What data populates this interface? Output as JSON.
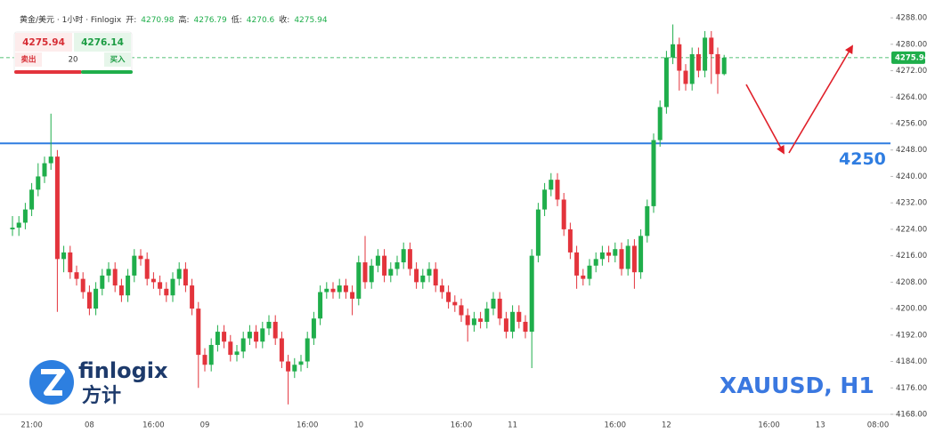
{
  "chart_data": {
    "type": "candlestick",
    "title": "黄金/美元 · 1小时 · Finlogix",
    "ohlc_names": [
      "开:",
      "高:",
      "低:",
      "收:"
    ],
    "up_color": "#1fae4b",
    "down_color": "#e3343c",
    "level": 4250,
    "level_color": "#2f7de1",
    "symbol": "XAUUSD, H1",
    "logo": [
      "finlogix",
      "方计"
    ],
    "trade_panel": {
      "sell_label": "卖出",
      "buy_label": "买入",
      "quantity": 20,
      "buy_price": 4276.14
    },
    "ylim": [
      4168,
      4293.4
    ],
    "yticks": [
      {
        "value": 4168,
        "label": "4168.00"
      },
      {
        "value": 4176,
        "label": "4176.00"
      },
      {
        "value": 4184,
        "label": "4184.00"
      },
      {
        "value": 4192,
        "label": "4192.00"
      },
      {
        "value": 4200,
        "label": "4200.00"
      },
      {
        "value": 4208,
        "label": "4208.00"
      },
      {
        "value": 4216,
        "label": "4216.00"
      },
      {
        "value": 4224,
        "label": "4224.00"
      },
      {
        "value": 4232,
        "label": "4232.00"
      },
      {
        "value": 4240,
        "label": "4240.00"
      },
      {
        "value": 4248,
        "label": "4248.00"
      },
      {
        "value": 4256,
        "label": "4256.00"
      },
      {
        "value": 4264,
        "label": "4264.00"
      },
      {
        "value": 4272,
        "label": "4272.00"
      },
      {
        "value": 4280,
        "label": "4280.00"
      },
      {
        "value": 4288,
        "label": "4288.00"
      }
    ],
    "categories": [
      null,
      null,
      null,
      "21:00",
      null,
      null,
      null,
      null,
      null,
      null,
      null,
      null,
      "08",
      null,
      null,
      null,
      null,
      null,
      null,
      null,
      null,
      null,
      "16:00",
      null,
      null,
      null,
      null,
      null,
      null,
      null,
      "09",
      null,
      null,
      null,
      null,
      null,
      null,
      null,
      null,
      null,
      null,
      null,
      null,
      null,
      null,
      null,
      "16:00",
      null,
      null,
      null,
      null,
      null,
      null,
      null,
      "10",
      null,
      null,
      null,
      null,
      null,
      null,
      null,
      null,
      null,
      null,
      null,
      null,
      null,
      null,
      null,
      "16:00",
      null,
      null,
      null,
      null,
      null,
      null,
      null,
      "11",
      null,
      null,
      null,
      null,
      null,
      null,
      null,
      null,
      null,
      null,
      null,
      null,
      null,
      null,
      null,
      "16:00",
      null,
      null,
      null,
      null,
      null,
      null,
      null,
      "12",
      null,
      null,
      null,
      null,
      null,
      null,
      null,
      null,
      null,
      null,
      null,
      null,
      null,
      null,
      null,
      "16:00",
      null,
      null,
      null,
      null,
      null,
      null,
      null,
      "13",
      null,
      null,
      null,
      null,
      null,
      null,
      null,
      null,
      "08:00"
    ],
    "open": [
      4224,
      4224.5,
      4226,
      4230,
      4236,
      4240,
      4244,
      4246,
      4215,
      4217,
      4211,
      4209,
      4205,
      4200,
      4206,
      4210,
      4212,
      4207,
      4204,
      4210,
      4216,
      4215,
      4209,
      4208,
      4206,
      4204,
      4209,
      4212,
      4207,
      4200,
      4186,
      4183,
      4189,
      4193,
      4190,
      4186,
      4187,
      4191,
      4193,
      4190,
      4194,
      4196,
      4191,
      4184,
      4181,
      4183,
      4184,
      4191,
      4197,
      4205,
      4206,
      4205,
      4207,
      4205,
      4203,
      4214,
      4208,
      4213,
      4216,
      4210,
      4212,
      4214,
      4218,
      4212,
      4208,
      4210,
      4212,
      4207,
      4205,
      4202,
      4201,
      4198,
      4195,
      4197,
      4196,
      4200,
      4203,
      4197,
      4193,
      4199,
      4196,
      4193,
      4216,
      4230,
      4236,
      4239,
      4233,
      4224,
      4217,
      4210,
      4209,
      4213,
      4215,
      4217,
      4216,
      4218,
      4212,
      4219,
      4211,
      4222,
      4231,
      4251,
      4261,
      4276,
      4280,
      4272,
      4268,
      4277,
      4272,
      4282,
      4277,
      4270.98,
      null,
      null,
      null,
      null,
      null,
      null,
      null,
      null,
      null,
      null,
      null,
      null,
      null,
      null,
      null,
      null,
      null,
      null,
      null,
      null,
      null,
      null,
      null,
      null
    ],
    "high": [
      4228,
      4228,
      4232,
      4238,
      4244,
      4246,
      4259,
      4248,
      4219,
      4219,
      4213,
      4211,
      4207,
      4208,
      4212,
      4214,
      4214,
      4209,
      4212,
      4218,
      4218,
      4217,
      4211,
      4210,
      4208,
      4211,
      4214,
      4214,
      4209,
      4202,
      4188,
      4191,
      4195,
      4195,
      4192,
      4189,
      4193,
      4195,
      4195,
      4196,
      4198,
      4198,
      4193,
      4186,
      4185,
      4186,
      4193,
      4199,
      4207,
      4208,
      4208,
      4209,
      4209,
      4207,
      4216,
      4222,
      4215,
      4218,
      4218,
      4214,
      4216,
      4220,
      4220,
      4214,
      4212,
      4214,
      4214,
      4209,
      4207,
      4204,
      4203,
      4200,
      4199,
      4199,
      4202,
      4205,
      4205,
      4199,
      4201,
      4201,
      4198,
      4218,
      4232,
      4238,
      4241,
      4241,
      4235,
      4226,
      4219,
      4212,
      4215,
      4217,
      4219,
      4219,
      4220,
      4220,
      4221,
      4221,
      4224,
      4233,
      4253,
      4263,
      4278,
      4286,
      4282,
      4274,
      4279,
      4279,
      4284,
      4284,
      4279,
      4276.79,
      null,
      null,
      null,
      null,
      null,
      null,
      null,
      null,
      null,
      null,
      null,
      null,
      null,
      null,
      null,
      null,
      null,
      null,
      null,
      null,
      null,
      null,
      null,
      null
    ],
    "low": [
      4222,
      4222,
      4224,
      4228,
      4234,
      4238,
      4242,
      4199,
      4211,
      4209,
      4207,
      4203,
      4198,
      4198,
      4204,
      4208,
      4205,
      4202,
      4202,
      4208,
      4213,
      4207,
      4206,
      4204,
      4202,
      4202,
      4207,
      4205,
      4198,
      4176,
      4181,
      4181,
      4187,
      4188,
      4184,
      4184,
      4185,
      4189,
      4188,
      4188,
      4192,
      4189,
      4182,
      4171,
      4179,
      4181,
      4182,
      4189,
      4195,
      4203,
      4203,
      4203,
      4203,
      4198,
      4201,
      4206,
      4206,
      4211,
      4208,
      4208,
      4210,
      4212,
      4210,
      4206,
      4206,
      4208,
      4205,
      4203,
      4200,
      4199,
      4196,
      4190,
      4193,
      4194,
      4194,
      4198,
      4195,
      4191,
      4191,
      4194,
      4191,
      4182,
      4214,
      4228,
      4234,
      4231,
      4222,
      4215,
      4206,
      4207,
      4207,
      4211,
      4213,
      4214,
      4214,
      4210,
      4210,
      4206,
      4209,
      4220,
      4229,
      4249,
      4259,
      4274,
      4266,
      4266,
      4266,
      4270,
      4270,
      4268,
      4265,
      4270.6,
      null,
      null,
      null,
      null,
      null,
      null,
      null,
      null,
      null,
      null,
      null,
      null,
      null,
      null,
      null,
      null,
      null,
      null,
      null,
      null,
      null,
      null,
      null,
      null
    ],
    "close": [
      4224.5,
      4226,
      4230,
      4236,
      4240,
      4244,
      4246,
      4215,
      4217,
      4211,
      4209,
      4205,
      4200,
      4206,
      4210,
      4212,
      4207,
      4204,
      4210,
      4216,
      4215,
      4209,
      4208,
      4206,
      4204,
      4209,
      4212,
      4207,
      4200,
      4186,
      4183,
      4189,
      4193,
      4190,
      4186,
      4187,
      4191,
      4193,
      4190,
      4194,
      4196,
      4191,
      4184,
      4181,
      4183,
      4184,
      4191,
      4197,
      4205,
      4206,
      4205,
      4207,
      4205,
      4203,
      4214,
      4208,
      4213,
      4216,
      4210,
      4212,
      4214,
      4218,
      4212,
      4208,
      4210,
      4212,
      4207,
      4205,
      4202,
      4201,
      4198,
      4195,
      4197,
      4196,
      4200,
      4203,
      4197,
      4193,
      4199,
      4196,
      4193,
      4216,
      4230,
      4236,
      4239,
      4233,
      4224,
      4217,
      4210,
      4209,
      4213,
      4215,
      4217,
      4216,
      4218,
      4212,
      4219,
      4211,
      4222,
      4231,
      4251,
      4261,
      4276,
      4280,
      4272,
      4268,
      4277,
      4272,
      4282,
      4277,
      4270.98,
      4275.94,
      null,
      null,
      null,
      null,
      null,
      null,
      null,
      null,
      null,
      null,
      null,
      null,
      null,
      null,
      null,
      null,
      null,
      null,
      null,
      null,
      null,
      null,
      null,
      null
    ]
  }
}
